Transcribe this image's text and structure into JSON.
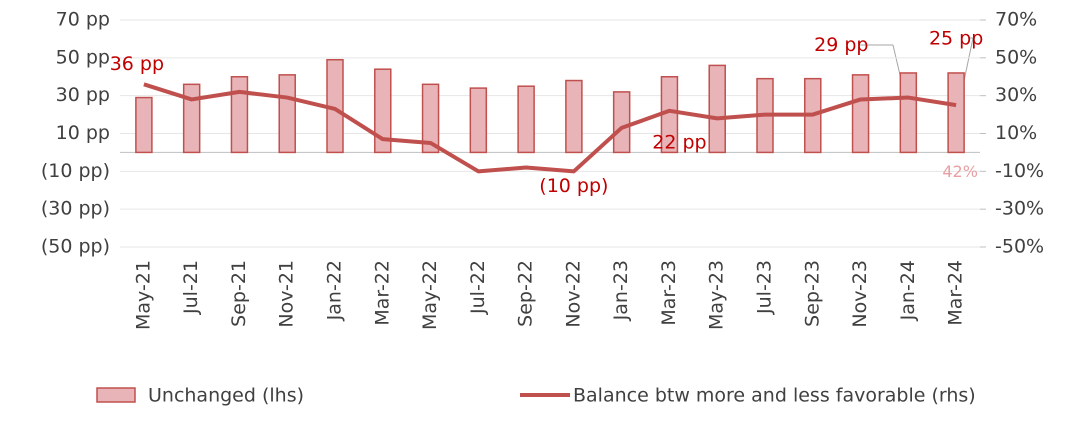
{
  "chart_data": {
    "type": "bar-line",
    "categories": [
      "May-21",
      "Jul-21",
      "Sep-21",
      "Nov-21",
      "Jan-22",
      "Mar-22",
      "May-22",
      "Jul-22",
      "Sep-22",
      "Nov-22",
      "Jan-23",
      "Mar-23",
      "May-23",
      "Jul-23",
      "Sep-23",
      "Nov-23",
      "Jan-24",
      "Mar-24"
    ],
    "series": [
      {
        "name": "Unchanged (lhs)",
        "type": "bar",
        "color": "#e8b4b8",
        "edge_color": "#c0504d",
        "values": [
          29,
          36,
          40,
          41,
          49,
          44,
          36,
          34,
          35,
          38,
          32,
          40,
          46,
          39,
          39,
          41,
          42,
          42
        ],
        "value_labels": [
          null,
          null,
          null,
          null,
          null,
          null,
          null,
          null,
          null,
          null,
          null,
          null,
          null,
          null,
          null,
          null,
          null,
          "42%"
        ]
      },
      {
        "name": "Balance btw more and less favorable (rhs)",
        "type": "line",
        "axis": "y2",
        "color": "#c0504d",
        "values": [
          36,
          28,
          32,
          29,
          23,
          7,
          5,
          -10,
          -8,
          -10,
          13,
          22,
          18,
          20,
          20,
          28,
          29,
          25
        ],
        "value_labels": [
          "36 pp",
          null,
          null,
          null,
          null,
          null,
          null,
          null,
          null,
          "(10 pp)",
          null,
          "22 pp",
          null,
          null,
          null,
          null,
          "29 pp",
          "25 pp"
        ]
      }
    ],
    "ylim": [
      -50,
      70
    ],
    "yticks": [
      {
        "value": 70,
        "label": "70 pp"
      },
      {
        "value": 50,
        "label": "50 pp"
      },
      {
        "value": 30,
        "label": "30 pp"
      },
      {
        "value": 10,
        "label": "10 pp"
      },
      {
        "value": -10,
        "label": "(10 pp)"
      },
      {
        "value": -30,
        "label": "(30 pp)"
      },
      {
        "value": -50,
        "label": "(50 pp)"
      }
    ],
    "y2lim": [
      -50,
      70
    ],
    "y2ticks": [
      {
        "value": 70,
        "label": "70%"
      },
      {
        "value": 50,
        "label": "50%"
      },
      {
        "value": 30,
        "label": "30%"
      },
      {
        "value": 10,
        "label": "10%"
      },
      {
        "value": -10,
        "label": "-10%"
      },
      {
        "value": -30,
        "label": "-30%"
      },
      {
        "value": -50,
        "label": "-50%"
      }
    ],
    "grid": true,
    "legend": "bottom"
  }
}
